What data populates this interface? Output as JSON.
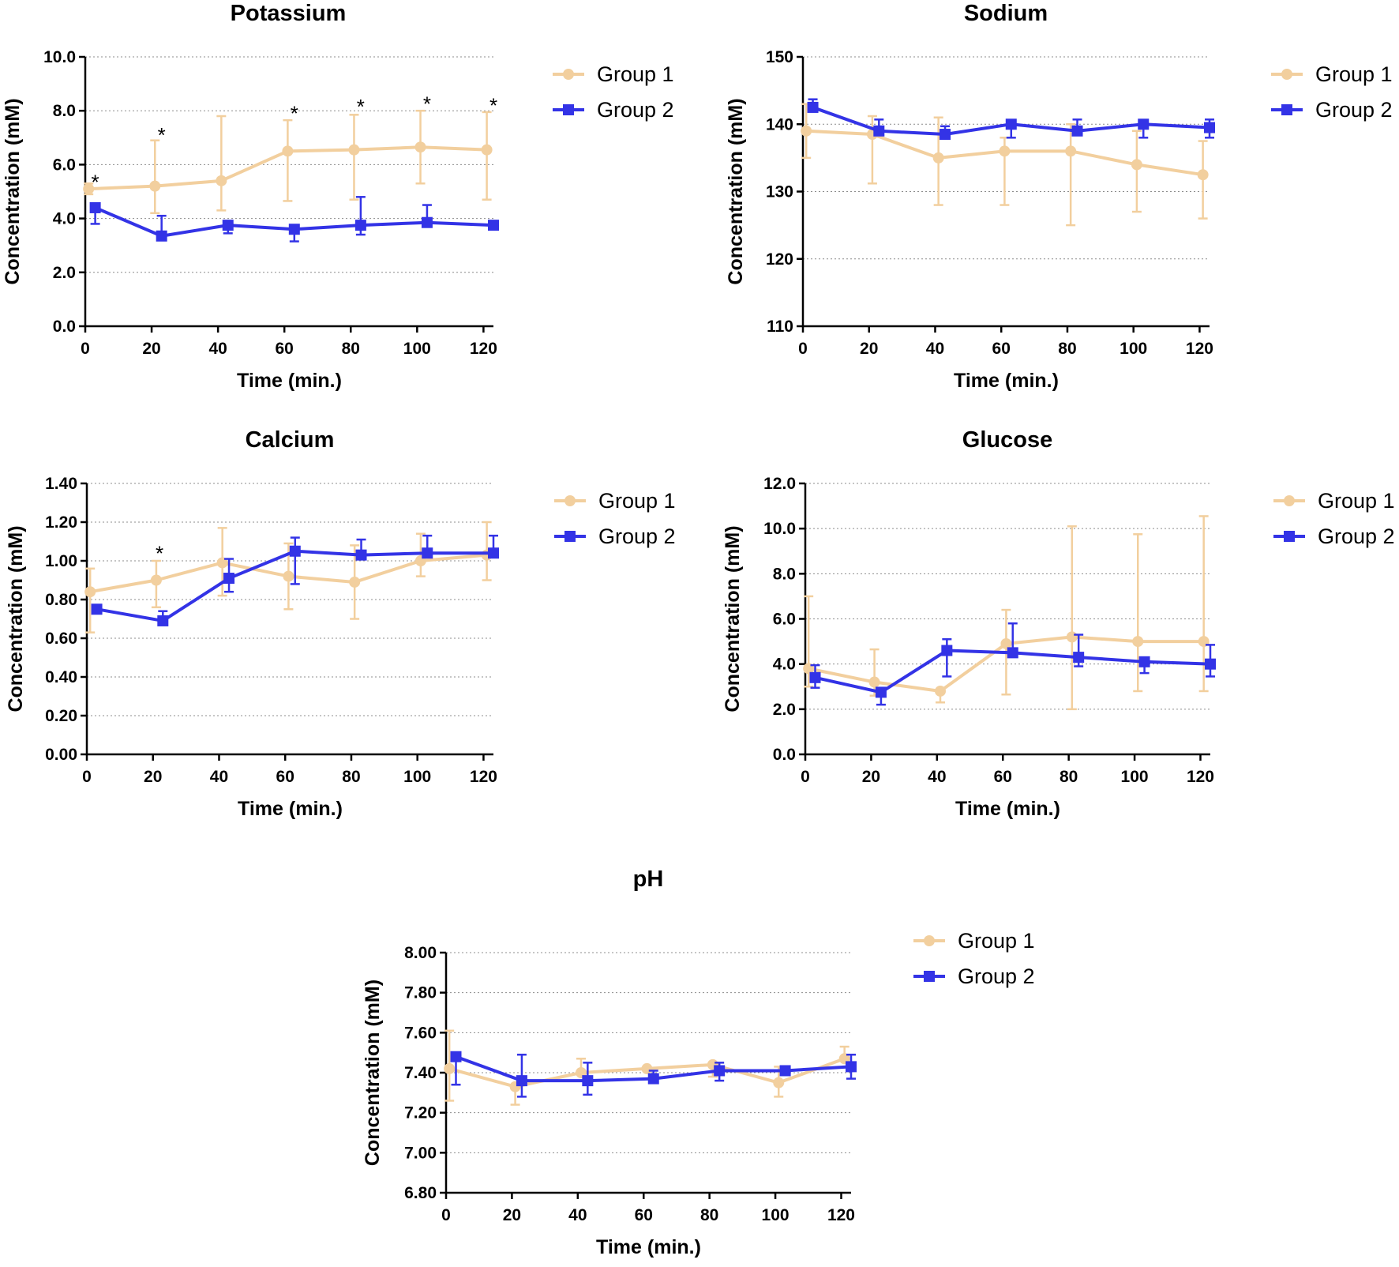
{
  "chart_data": [
    {
      "type": "line",
      "title": "Potassium",
      "xlabel": "Time (min.)",
      "ylabel": "Concentration (mM)",
      "xlim": [
        0,
        123
      ],
      "ylim": [
        0,
        10
      ],
      "xticks": [
        "0",
        "20",
        "40",
        "60",
        "80",
        "100",
        "120"
      ],
      "yticks": [
        "0.0",
        "2.0",
        "4.0",
        "6.0",
        "8.0",
        "10.0"
      ],
      "grid": "horizontal-dotted",
      "legend": "top-right-outside",
      "series": [
        {
          "name": "Group 1",
          "color": "#f2cf9e",
          "marker": "circle",
          "x": [
            1,
            21,
            41,
            61,
            81,
            101,
            121
          ],
          "y": [
            5.1,
            5.2,
            5.4,
            6.5,
            6.55,
            6.65,
            6.55
          ],
          "err_low": [
            0.2,
            1.0,
            1.1,
            1.85,
            1.85,
            1.35,
            1.85
          ],
          "err_high": [
            0.2,
            1.7,
            2.4,
            1.15,
            1.3,
            1.35,
            1.4
          ]
        },
        {
          "name": "Group 2",
          "color": "#3333e6",
          "marker": "square",
          "x": [
            3,
            23,
            43,
            63,
            83,
            103,
            123
          ],
          "y": [
            4.4,
            3.35,
            3.75,
            3.6,
            3.75,
            3.85,
            3.75
          ],
          "err_low": [
            0.6,
            0.0,
            0.3,
            0.45,
            0.35,
            0.0,
            0.0
          ],
          "err_high": [
            0.0,
            0.75,
            0.0,
            0.0,
            1.05,
            0.65,
            0.0
          ]
        }
      ],
      "annotations": [
        {
          "text": "*",
          "x": 3,
          "y": 5.5
        },
        {
          "text": "*",
          "x": 23,
          "y": 7.25
        },
        {
          "text": "*",
          "x": 63,
          "y": 8.05
        },
        {
          "text": "*",
          "x": 83,
          "y": 8.3
        },
        {
          "text": "*",
          "x": 103,
          "y": 8.4
        },
        {
          "text": "*",
          "x": 123,
          "y": 8.35
        }
      ]
    },
    {
      "type": "line",
      "title": "Sodium",
      "xlabel": "Time (min.)",
      "ylabel": "Concentration (mM)",
      "xlim": [
        0,
        123
      ],
      "ylim": [
        110,
        150
      ],
      "xticks": [
        "0",
        "20",
        "40",
        "60",
        "80",
        "100",
        "120"
      ],
      "yticks": [
        "110",
        "120",
        "130",
        "140",
        "150"
      ],
      "grid": "horizontal-dotted",
      "legend": "top-right-outside",
      "series": [
        {
          "name": "Group 1",
          "color": "#f2cf9e",
          "marker": "circle",
          "x": [
            1,
            21,
            41,
            61,
            81,
            101,
            121
          ],
          "y": [
            139,
            138.5,
            135,
            136,
            136,
            134,
            132.5
          ],
          "err_low": [
            4,
            7.3,
            7,
            8,
            11,
            7,
            6.5
          ],
          "err_high": [
            4,
            2.7,
            6,
            2,
            4,
            5,
            5
          ]
        },
        {
          "name": "Group 2",
          "color": "#3333e6",
          "marker": "square",
          "x": [
            3,
            23,
            43,
            63,
            83,
            103,
            123
          ],
          "y": [
            142.5,
            139,
            138.5,
            140,
            139,
            140,
            139.5
          ],
          "err_low": [
            0,
            0,
            0,
            2,
            0,
            2,
            1.5
          ],
          "err_high": [
            1.2,
            1.7,
            1.2,
            0,
            1.7,
            0,
            1.2
          ]
        }
      ],
      "annotations": []
    },
    {
      "type": "line",
      "title": "Calcium",
      "xlabel": "Time (min.)",
      "ylabel": "Concentration (mM)",
      "xlim": [
        0,
        123
      ],
      "ylim": [
        0,
        1.4
      ],
      "xticks": [
        "0",
        "20",
        "40",
        "60",
        "80",
        "100",
        "120"
      ],
      "yticks": [
        "0.00",
        "0.20",
        "0.40",
        "0.60",
        "0.80",
        "1.00",
        "1.20",
        "1.40"
      ],
      "grid": "horizontal-dotted",
      "legend": "top-right-outside",
      "series": [
        {
          "name": "Group 1",
          "color": "#f2cf9e",
          "marker": "circle",
          "x": [
            1,
            21,
            41,
            61,
            81,
            101,
            121
          ],
          "y": [
            0.84,
            0.9,
            0.99,
            0.92,
            0.89,
            1.0,
            1.03
          ],
          "err_low": [
            0.21,
            0.14,
            0.17,
            0.17,
            0.19,
            0.08,
            0.13
          ],
          "err_high": [
            0.12,
            0.1,
            0.18,
            0.17,
            0.19,
            0.14,
            0.17
          ]
        },
        {
          "name": "Group 2",
          "color": "#3333e6",
          "marker": "square",
          "x": [
            3,
            23,
            43,
            63,
            83,
            103,
            123
          ],
          "y": [
            0.75,
            0.69,
            0.91,
            1.05,
            1.03,
            1.04,
            1.04
          ],
          "err_low": [
            0,
            0,
            0.07,
            0.17,
            0,
            0,
            0
          ],
          "err_high": [
            0,
            0.05,
            0.1,
            0.07,
            0.08,
            0.09,
            0.09
          ]
        }
      ],
      "annotations": [
        {
          "text": "*",
          "x": 22,
          "y": 1.06
        }
      ]
    },
    {
      "type": "line",
      "title": "Glucose",
      "xlabel": "Time (min.)",
      "ylabel": "Concentration (mM)",
      "xlim": [
        0,
        123
      ],
      "ylim": [
        0,
        12
      ],
      "xticks": [
        "0",
        "20",
        "40",
        "60",
        "80",
        "100",
        "120"
      ],
      "yticks": [
        "0.0",
        "2.0",
        "4.0",
        "6.0",
        "8.0",
        "10.0",
        "12.0"
      ],
      "grid": "horizontal-dotted",
      "legend": "top-right-outside",
      "series": [
        {
          "name": "Group 1",
          "color": "#f2cf9e",
          "marker": "circle",
          "x": [
            1,
            21,
            41,
            61,
            81,
            101,
            121
          ],
          "y": [
            3.8,
            3.2,
            2.8,
            4.9,
            5.2,
            5.0,
            5.0
          ],
          "err_low": [
            0.8,
            0.6,
            0.5,
            2.25,
            3.2,
            2.2,
            2.2
          ],
          "err_high": [
            3.2,
            1.45,
            0,
            1.5,
            4.9,
            4.75,
            5.55
          ]
        },
        {
          "name": "Group 2",
          "color": "#3333e6",
          "marker": "square",
          "x": [
            3,
            23,
            43,
            63,
            83,
            103,
            123
          ],
          "y": [
            3.4,
            2.75,
            4.6,
            4.5,
            4.3,
            4.1,
            4.0
          ],
          "err_low": [
            0.45,
            0.55,
            1.15,
            0,
            0.4,
            0.5,
            0.55
          ],
          "err_high": [
            0.55,
            0,
            0.5,
            1.3,
            1.0,
            0,
            0.85
          ]
        }
      ],
      "annotations": []
    },
    {
      "type": "line",
      "title": "pH",
      "xlabel": "Time (min.)",
      "ylabel": "Concentration (mM)",
      "xlim": [
        0,
        123
      ],
      "ylim": [
        6.8,
        8.0
      ],
      "xticks": [
        "0",
        "20",
        "40",
        "60",
        "80",
        "100",
        "120"
      ],
      "yticks": [
        "6.80",
        "7.00",
        "7.20",
        "7.40",
        "7.60",
        "7.80",
        "8.00"
      ],
      "grid": "horizontal-dotted",
      "legend": "top-right-outside",
      "series": [
        {
          "name": "Group 1",
          "color": "#f2cf9e",
          "marker": "circle",
          "x": [
            1,
            21,
            41,
            61,
            81,
            101,
            121
          ],
          "y": [
            7.42,
            7.33,
            7.4,
            7.42,
            7.44,
            7.35,
            7.47
          ],
          "err_low": [
            0.16,
            0.09,
            0.0,
            0.0,
            0.06,
            0.07,
            0.0
          ],
          "err_high": [
            0.19,
            0.0,
            0.07,
            0.0,
            0.0,
            0.08,
            0.06
          ]
        },
        {
          "name": "Group 2",
          "color": "#3333e6",
          "marker": "square",
          "x": [
            3,
            23,
            43,
            63,
            83,
            103,
            123
          ],
          "y": [
            7.48,
            7.36,
            7.36,
            7.37,
            7.41,
            7.41,
            7.43
          ],
          "err_low": [
            0.14,
            0.08,
            0.07,
            0.0,
            0.05,
            0.0,
            0.06
          ],
          "err_high": [
            0.0,
            0.13,
            0.09,
            0.04,
            0.04,
            0.0,
            0.06
          ]
        }
      ],
      "annotations": []
    }
  ]
}
